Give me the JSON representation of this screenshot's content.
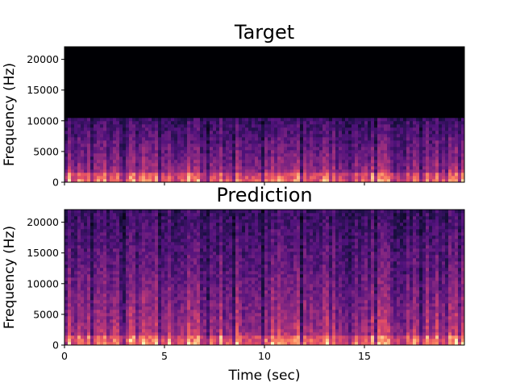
{
  "chart_data": [
    {
      "type": "heatmap",
      "title": "Target",
      "xlabel": "",
      "ylabel": "Frequency (Hz)",
      "xlim": [
        0,
        20
      ],
      "ylim": [
        0,
        22050
      ],
      "yticks": [
        0,
        5000,
        10000,
        15000,
        20000
      ],
      "xticks": [
        0,
        5,
        10,
        15
      ],
      "xticklabels_shown": false,
      "colormap": "magma",
      "content_cutoff_hz": 10500,
      "note_visible_features": "spectral energy present only below ~10500 Hz; black above"
    },
    {
      "type": "heatmap",
      "title": "Prediction",
      "xlabel": "Time (sec)",
      "ylabel": "Frequency (Hz)",
      "xlim": [
        0,
        20
      ],
      "ylim": [
        0,
        22050
      ],
      "yticks": [
        0,
        5000,
        10000,
        15000,
        20000
      ],
      "xticks": [
        0,
        5,
        10,
        15
      ],
      "xticklabels_shown": true,
      "colormap": "magma",
      "content_cutoff_hz": 22050
    }
  ],
  "colors": {
    "background": "#ffffff",
    "axes": "#000000",
    "magma_dark": "#000004",
    "magma_purple": "#51127c",
    "magma_red": "#b73779",
    "magma_orange": "#fc8961",
    "magma_light": "#fcfdbf"
  }
}
